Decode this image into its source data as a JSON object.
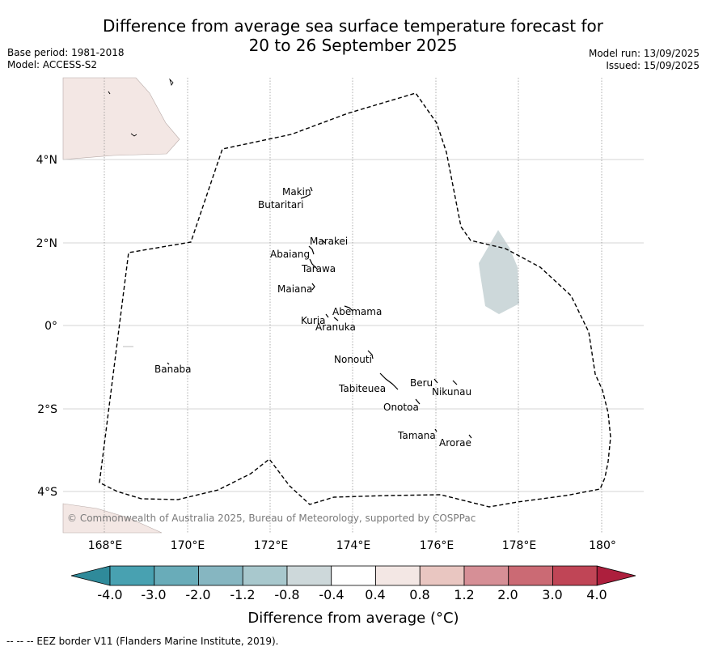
{
  "title_line1": "Difference from average sea surface temperature forecast for",
  "title_line2": "20 to 26 September 2025",
  "meta_left": {
    "base_period": "Base period: 1981-2018",
    "model": "Model: ACCESS-S2"
  },
  "meta_right": {
    "model_run": "Model run: 13/09/2025",
    "issued": "Issued: 15/09/2025"
  },
  "copyright": "© Commonwealth of Australia 2025, Bureau of Meteorology, supported by COSPPac",
  "footnote": "--  --  -- EEZ border V11 (Flanders Marine Institute, 2019).",
  "axes": {
    "lon_ticks": [
      "168°E",
      "170°E",
      "172°E",
      "174°E",
      "176°E",
      "178°E",
      "180°"
    ],
    "lat_ticks": [
      "4°N",
      "2°N",
      "0°",
      "2°S",
      "4°S"
    ]
  },
  "places": [
    {
      "name": "Makin"
    },
    {
      "name": "Butaritari"
    },
    {
      "name": "Marakei"
    },
    {
      "name": "Abaiang"
    },
    {
      "name": "Tarawa"
    },
    {
      "name": "Maiana"
    },
    {
      "name": "Abemama"
    },
    {
      "name": "Kuria"
    },
    {
      "name": "Aranuka"
    },
    {
      "name": "Nonouti"
    },
    {
      "name": "Banaba"
    },
    {
      "name": "Tabiteuea"
    },
    {
      "name": "Beru"
    },
    {
      "name": "Nikunau"
    },
    {
      "name": "Onotoa"
    },
    {
      "name": "Tamana"
    },
    {
      "name": "Arorae"
    }
  ],
  "colorbar": {
    "label": "Difference from average (°C)",
    "ticks": [
      "-4.0",
      "-3.0",
      "-2.0",
      "-1.2",
      "-0.8",
      "-0.4",
      "0.4",
      "0.8",
      "1.2",
      "2.0",
      "3.0",
      "4.0"
    ],
    "colors": [
      "#2f8a9a",
      "#48a1b1",
      "#69acb9",
      "#86b6c1",
      "#a8c8cd",
      "#cdd8da",
      "#ffffff",
      "#f3e7e4",
      "#e9c6c1",
      "#d68f96",
      "#cb6a74",
      "#c04556",
      "#ad1f3d"
    ]
  },
  "anomaly_colors": {
    "land": "#f3e7e4",
    "cool_patch": "#cdd8da"
  }
}
